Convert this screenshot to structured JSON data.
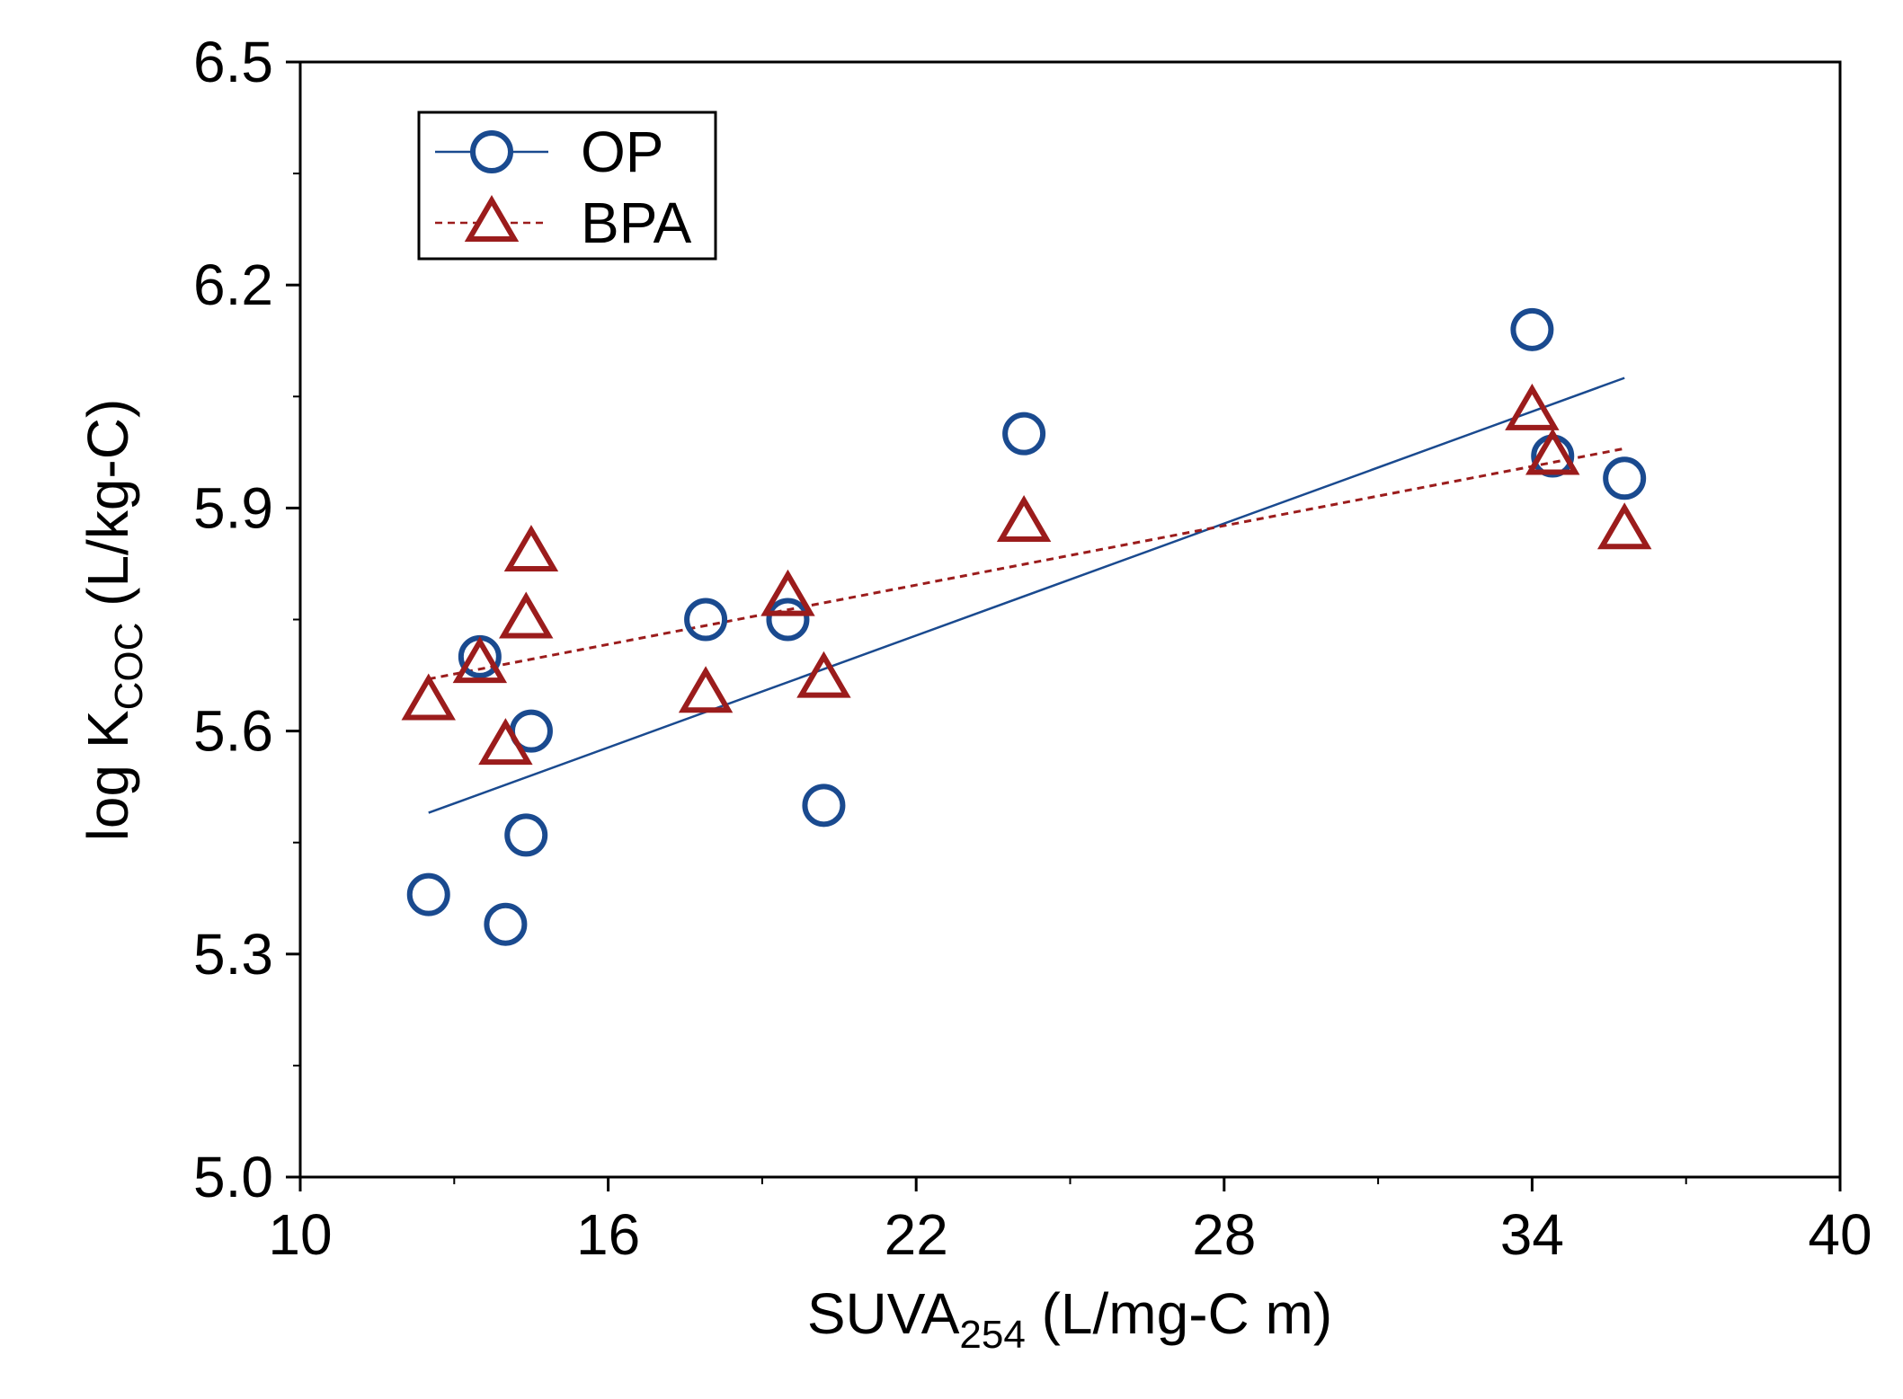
{
  "chart_data": {
    "type": "scatter",
    "title": "",
    "xlabel": {
      "main": "SUVA",
      "sub": "254",
      "suffix": " (L/mg-C m)"
    },
    "ylabel": {
      "main": "log K",
      "sub": "COC",
      "suffix": " (L/kg-C)"
    },
    "xlim": [
      10,
      40
    ],
    "ylim": [
      5.0,
      6.5
    ],
    "xticks": [
      "10",
      "16",
      "22",
      "28",
      "34",
      "40"
    ],
    "yticks": [
      "5.0",
      "5.3",
      "5.6",
      "5.9",
      "6.2",
      "6.5"
    ],
    "legend_position": "top-left",
    "series": [
      {
        "name": "OP",
        "marker": "circle",
        "color": "#1a4a8f",
        "line_style": "solid",
        "x": [
          12.5,
          13.5,
          14.0,
          14.4,
          14.5,
          17.9,
          19.5,
          20.2,
          24.1,
          34.0,
          34.4,
          35.8
        ],
        "y": [
          5.38,
          5.7,
          5.34,
          5.46,
          5.6,
          5.75,
          5.75,
          5.5,
          6.0,
          6.14,
          5.97,
          5.94
        ],
        "fit": {
          "x": [
            12.5,
            35.8
          ],
          "y": [
            5.49,
            6.075
          ]
        }
      },
      {
        "name": "BPA",
        "marker": "triangle",
        "color": "#9b1c1c",
        "line_style": "dashed",
        "x": [
          12.5,
          13.5,
          14.0,
          14.4,
          14.5,
          17.9,
          19.5,
          20.2,
          24.1,
          34.0,
          34.4,
          35.8
        ],
        "y": [
          5.64,
          5.69,
          5.58,
          5.75,
          5.84,
          5.65,
          5.78,
          5.67,
          5.88,
          6.03,
          5.97,
          5.87
        ],
        "fit": {
          "x": [
            12.5,
            35.8
          ],
          "y": [
            5.67,
            5.98
          ]
        }
      }
    ]
  }
}
